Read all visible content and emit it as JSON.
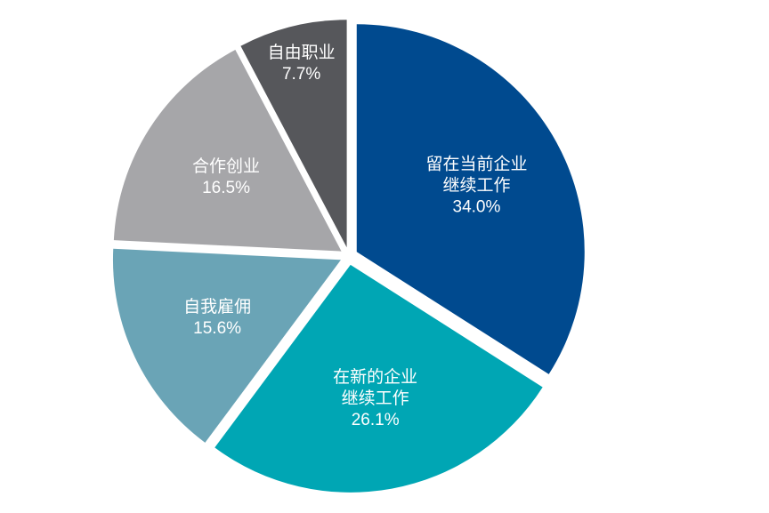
{
  "chart_data": {
    "type": "pie",
    "categories": [
      [
        "留在当前企业",
        "继续工作"
      ],
      [
        "在新的企业",
        "继续工作"
      ],
      [
        "自我雇佣"
      ],
      [
        "合作创业"
      ],
      [
        "自由职业"
      ]
    ],
    "values": [
      34.0,
      26.1,
      15.6,
      16.5,
      7.7
    ],
    "value_labels": [
      "34.0%",
      "26.1%",
      "15.6%",
      "16.5%",
      "7.7%"
    ],
    "colors": [
      "#004a8f",
      "#00a6b4",
      "#6aa4b6",
      "#a6a6a9",
      "#56575b"
    ]
  }
}
